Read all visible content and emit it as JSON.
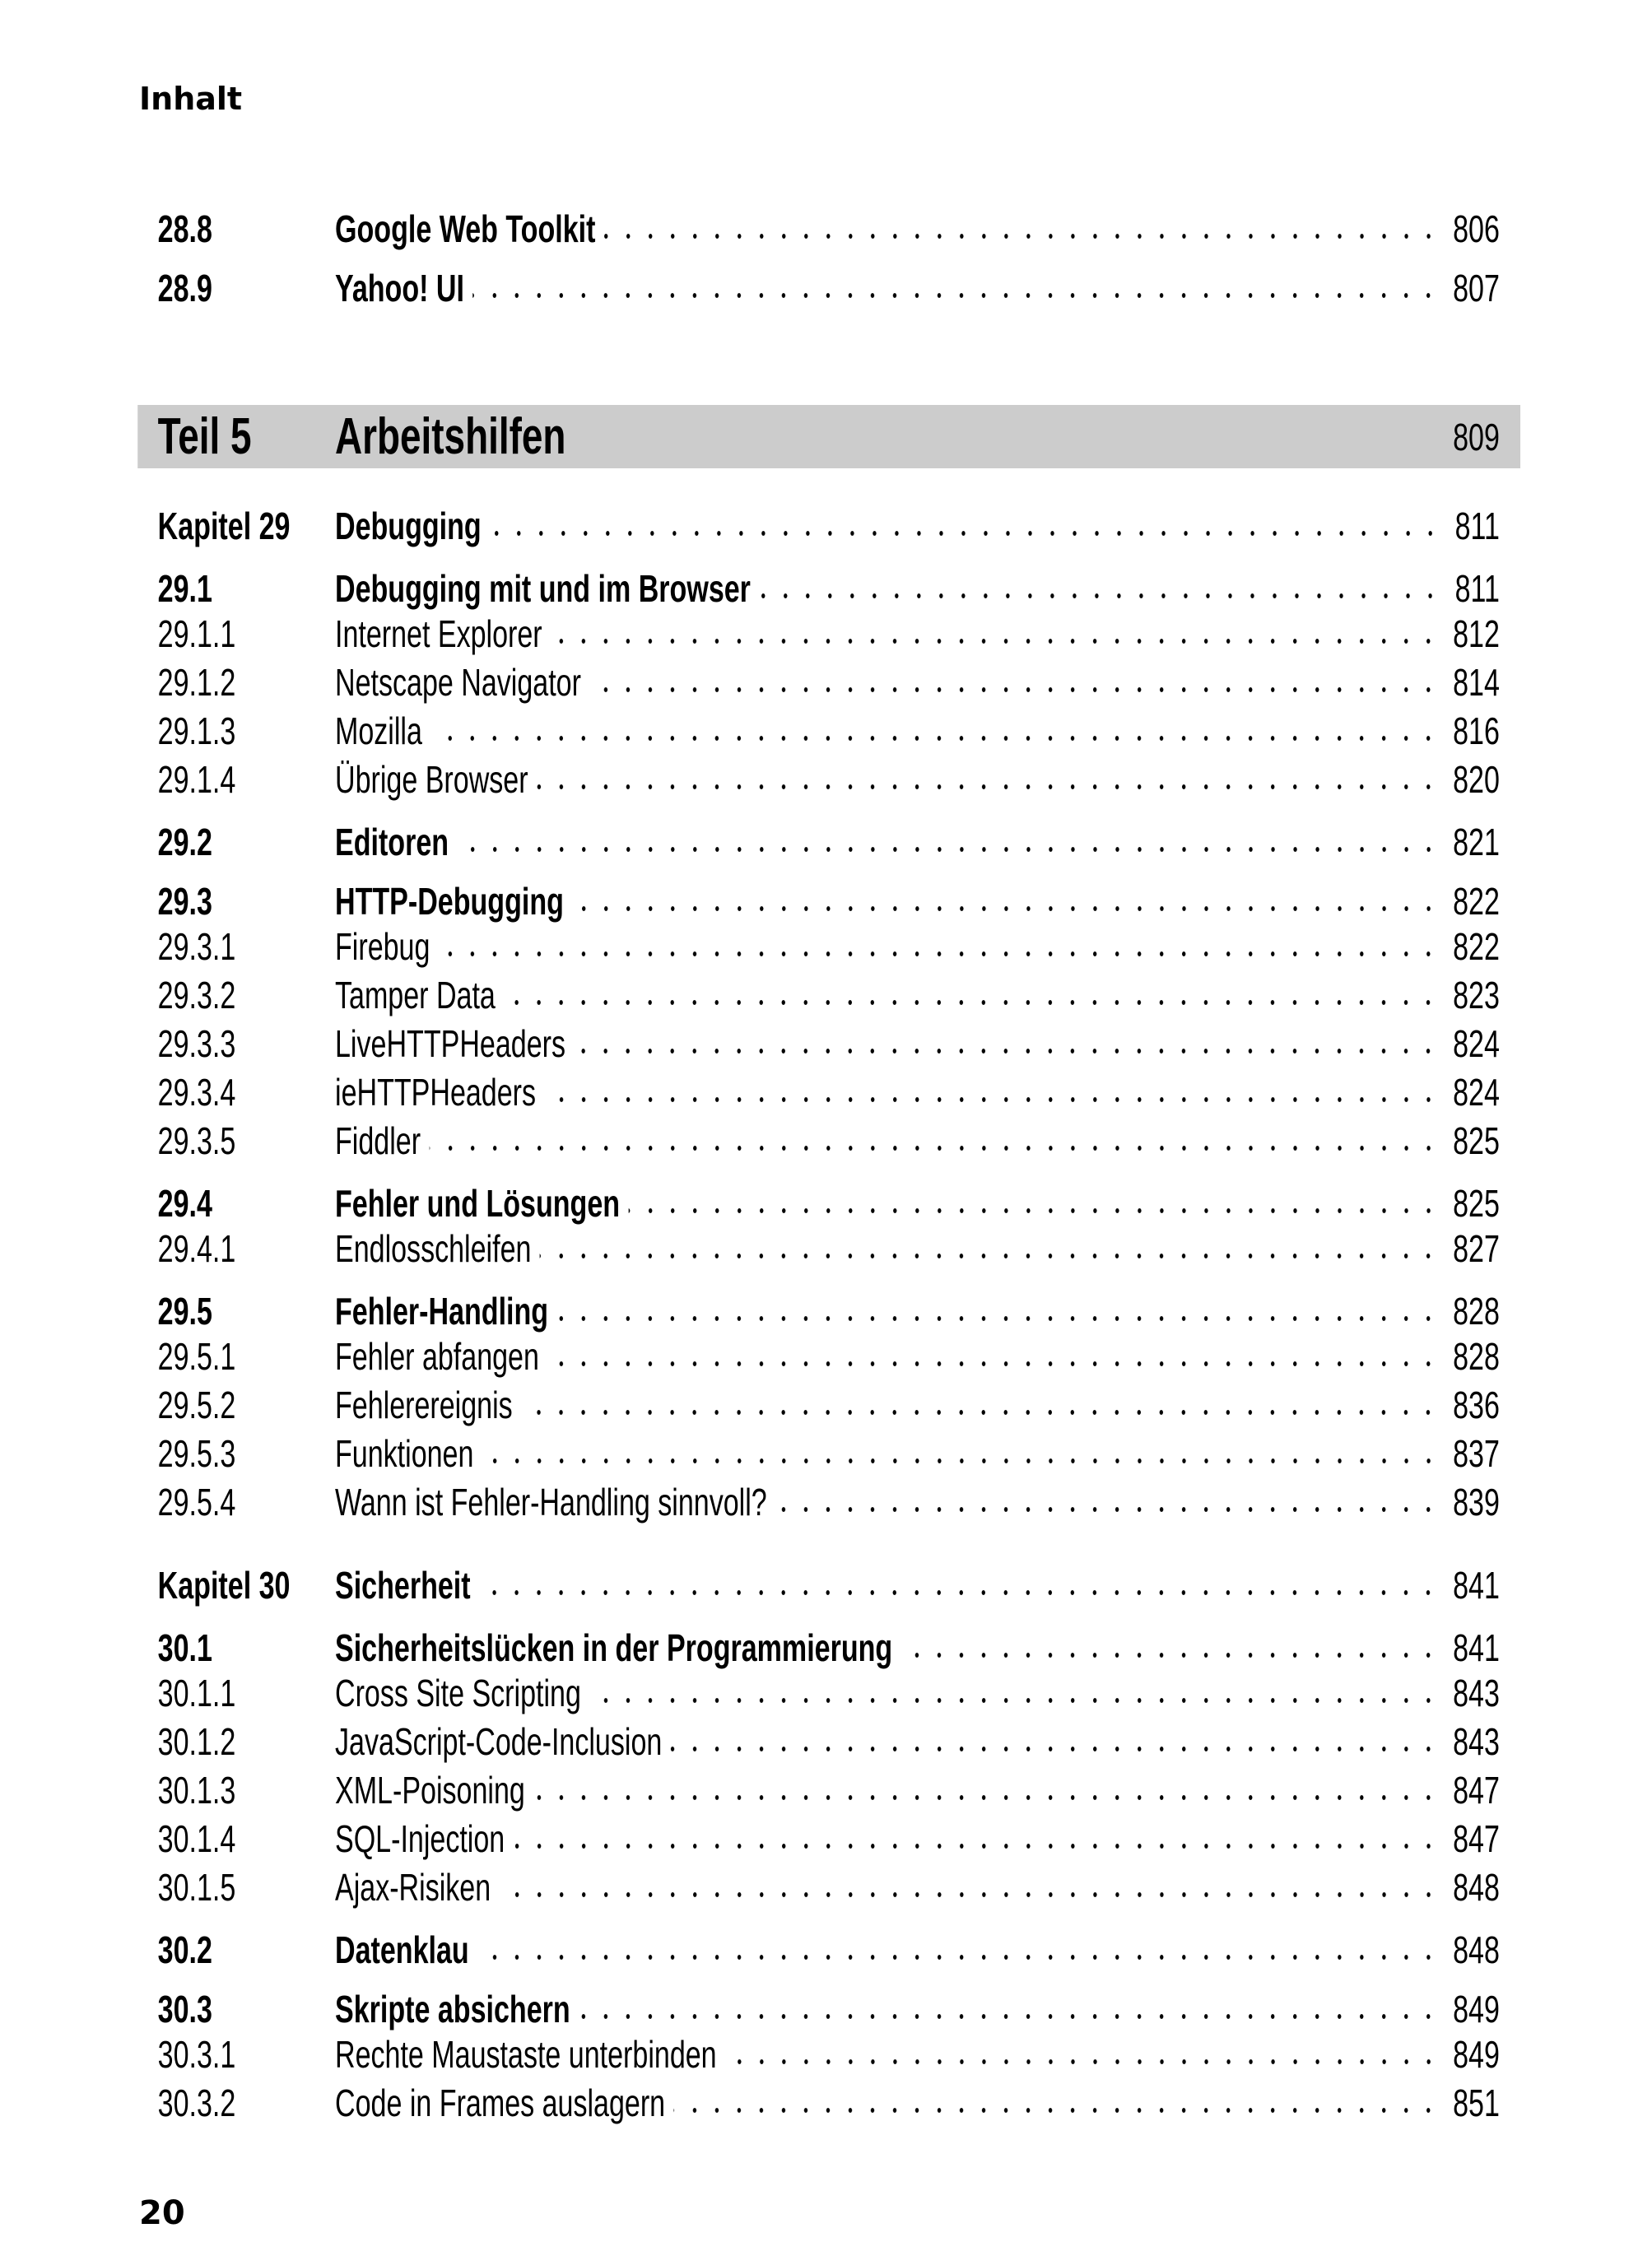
{
  "running_head": "Inhalt",
  "folio": "20",
  "before_part": [
    {
      "num": "28.8",
      "title": "Google Web Toolkit",
      "page": "806",
      "kind": "bold"
    },
    {
      "num": "28.9",
      "title": "Yahoo! UI",
      "page": "807",
      "kind": "bold"
    }
  ],
  "part": {
    "label": "Teil 5",
    "title": "Arbeitshilfen",
    "page": "809",
    "band_color": "#cccccc"
  },
  "entries": [
    {
      "num": "Kapitel 29",
      "title": "Debugging",
      "page": "811",
      "kind": "chapter"
    },
    {
      "num": "29.1",
      "title": "Debugging mit und im Browser",
      "page": "811",
      "kind": "bold"
    },
    {
      "num": "29.1.1",
      "title": "Internet Explorer",
      "page": "812",
      "kind": "sub"
    },
    {
      "num": "29.1.2",
      "title": "Netscape Navigator",
      "page": "814",
      "kind": "sub"
    },
    {
      "num": "29.1.3",
      "title": "Mozilla",
      "page": "816",
      "kind": "sub"
    },
    {
      "num": "29.1.4",
      "title": "Übrige Browser",
      "page": "820",
      "kind": "sub"
    },
    {
      "num": "29.2",
      "title": "Editoren",
      "page": "821",
      "kind": "bold"
    },
    {
      "num": "29.3",
      "title": "HTTP-Debugging",
      "page": "822",
      "kind": "bold"
    },
    {
      "num": "29.3.1",
      "title": "Firebug",
      "page": "822",
      "kind": "sub"
    },
    {
      "num": "29.3.2",
      "title": "Tamper Data",
      "page": "823",
      "kind": "sub"
    },
    {
      "num": "29.3.3",
      "title": "LiveHTTPHeaders",
      "page": "824",
      "kind": "sub"
    },
    {
      "num": "29.3.4",
      "title": "ieHTTPHeaders",
      "page": "824",
      "kind": "sub"
    },
    {
      "num": "29.3.5",
      "title": "Fiddler",
      "page": "825",
      "kind": "sub"
    },
    {
      "num": "29.4",
      "title": "Fehler und Lösungen",
      "page": "825",
      "kind": "bold"
    },
    {
      "num": "29.4.1",
      "title": "Endlosschleifen",
      "page": "827",
      "kind": "sub"
    },
    {
      "num": "29.5",
      "title": "Fehler-Handling",
      "page": "828",
      "kind": "bold"
    },
    {
      "num": "29.5.1",
      "title": "Fehler abfangen",
      "page": "828",
      "kind": "sub"
    },
    {
      "num": "29.5.2",
      "title": "Fehlerereignis",
      "page": "836",
      "kind": "sub"
    },
    {
      "num": "29.5.3",
      "title": "Funktionen",
      "page": "837",
      "kind": "sub"
    },
    {
      "num": "29.5.4",
      "title": "Wann ist Fehler-Handling sinnvoll?",
      "page": "839",
      "kind": "sub"
    },
    {
      "num": "Kapitel 30",
      "title": "Sicherheit",
      "page": "841",
      "kind": "chapter"
    },
    {
      "num": "30.1",
      "title": "Sicherheitslücken in der Programmierung",
      "page": "841",
      "kind": "bold"
    },
    {
      "num": "30.1.1",
      "title": "Cross Site Scripting",
      "page": "843",
      "kind": "sub"
    },
    {
      "num": "30.1.2",
      "title": "JavaScript-Code-Inclusion",
      "page": "843",
      "kind": "sub"
    },
    {
      "num": "30.1.3",
      "title": "XML-Poisoning",
      "page": "847",
      "kind": "sub"
    },
    {
      "num": "30.1.4",
      "title": "SQL-Injection",
      "page": "847",
      "kind": "sub"
    },
    {
      "num": "30.1.5",
      "title": "Ajax-Risiken",
      "page": "848",
      "kind": "sub"
    },
    {
      "num": "30.2",
      "title": "Datenklau",
      "page": "848",
      "kind": "bold"
    },
    {
      "num": "30.3",
      "title": "Skripte absichern",
      "page": "849",
      "kind": "bold"
    },
    {
      "num": "30.3.1",
      "title": "Rechte Maustaste unterbinden",
      "page": "849",
      "kind": "sub"
    },
    {
      "num": "30.3.2",
      "title": "Code in Frames auslagern",
      "page": "851",
      "kind": "sub"
    }
  ]
}
